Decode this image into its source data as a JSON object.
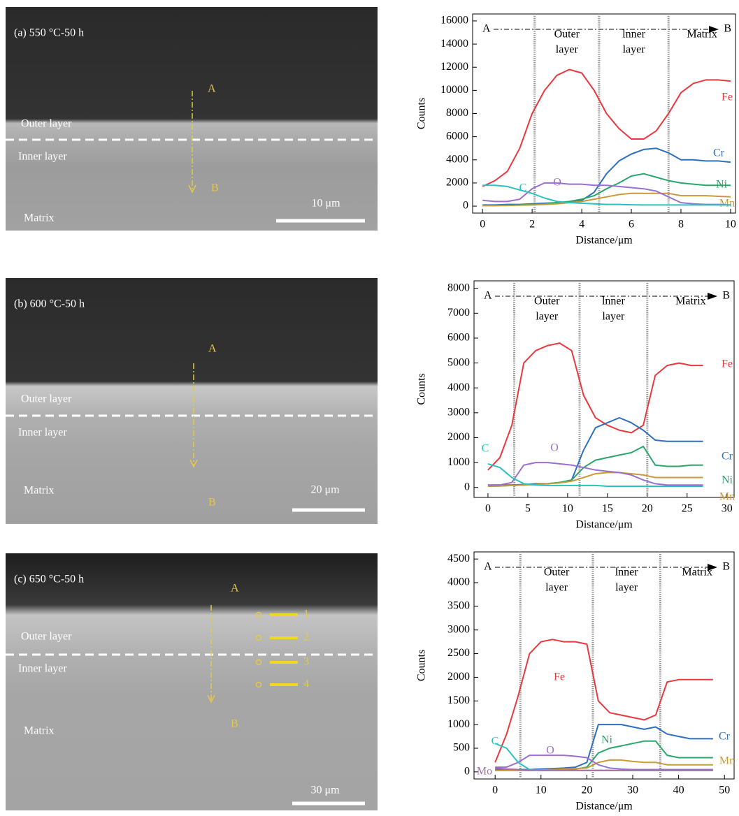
{
  "panels": [
    {
      "label": "(a) 550 °C-50 h",
      "point_a": "A",
      "point_b": "B",
      "outer": "Outer layer",
      "inner": "Inner layer",
      "matrix": "Matrix",
      "scale_bar": "10 μm"
    },
    {
      "label": "(b) 600 °C-50 h",
      "point_a": "A",
      "point_b": "B",
      "outer": "Outer layer",
      "inner": "Inner layer",
      "matrix": "Matrix",
      "scale_bar": "20 μm"
    },
    {
      "label": "(c) 650 °C-50 h",
      "point_a": "A",
      "point_b": "B",
      "outer": "Outer layer",
      "inner": "Inner layer",
      "matrix": "Matrix",
      "scale_bar": "30 μm",
      "spots": [
        "1",
        "2",
        "3",
        "4"
      ]
    }
  ],
  "chart_data": [
    {
      "type": "line",
      "y_label": "Counts",
      "x_label": "Distance/μm",
      "start": "A",
      "end": "B",
      "regions": [
        [
          "Outer",
          "layer"
        ],
        [
          "lnner",
          "layer"
        ],
        [
          "Matrix"
        ]
      ],
      "boundaries": [
        2.1,
        4.7,
        7.5
      ],
      "xlim": [
        -0.4,
        10.2
      ],
      "ylim": [
        -600,
        16600
      ],
      "xticks": [
        0,
        2,
        4,
        6,
        8,
        10
      ],
      "yticks": [
        0,
        2000,
        4000,
        6000,
        8000,
        10000,
        12000,
        14000,
        16000
      ],
      "x": [
        0,
        0.5,
        1,
        1.5,
        2,
        2.5,
        3,
        3.5,
        4,
        4.5,
        5,
        5.5,
        6,
        6.5,
        7,
        7.5,
        8,
        8.5,
        9,
        9.5,
        10
      ],
      "series": [
        {
          "name": "Fe",
          "color": "#e8393f",
          "values": [
            1700,
            2200,
            3000,
            5000,
            8000,
            10000,
            11300,
            11800,
            11500,
            10000,
            8000,
            6700,
            5800,
            5800,
            6500,
            8000,
            9800,
            10600,
            10900,
            10900,
            10800
          ]
        },
        {
          "name": "Cr",
          "color": "#2f6fbf",
          "values": [
            100,
            100,
            150,
            150,
            200,
            250,
            300,
            350,
            500,
            1200,
            2800,
            3900,
            4500,
            4900,
            5000,
            4600,
            4000,
            4000,
            3900,
            3900,
            3800
          ]
        },
        {
          "name": "Ni",
          "color": "#2aa66a",
          "values": [
            50,
            50,
            80,
            100,
            150,
            200,
            300,
            400,
            600,
            900,
            1500,
            2000,
            2600,
            2800,
            2500,
            2200,
            2000,
            1900,
            1800,
            1800,
            1800
          ]
        },
        {
          "name": "Mn",
          "color": "#c99a3a",
          "values": [
            50,
            50,
            60,
            80,
            100,
            150,
            200,
            300,
            400,
            600,
            800,
            1000,
            1100,
            1100,
            1100,
            1100,
            900,
            900,
            900,
            850,
            800
          ]
        },
        {
          "name": "O",
          "color": "#9b6fcf",
          "values": [
            500,
            400,
            400,
            600,
            1500,
            2000,
            2000,
            1900,
            1900,
            1800,
            1800,
            1700,
            1600,
            1500,
            1300,
            800,
            300,
            200,
            150,
            150,
            100
          ]
        },
        {
          "name": "C",
          "color": "#2cc0c0",
          "values": [
            1800,
            1800,
            1700,
            1400,
            1100,
            700,
            400,
            300,
            250,
            200,
            150,
            150,
            120,
            100,
            100,
            100,
            100,
            100,
            100,
            100,
            100
          ]
        }
      ]
    },
    {
      "type": "line",
      "y_label": "Counts",
      "x_label": "Distance/μm",
      "start": "A",
      "end": "B",
      "regions": [
        [
          "Outer",
          "layer"
        ],
        [
          "lnner",
          "layer"
        ],
        [
          "Matrix"
        ]
      ],
      "boundaries": [
        3.3,
        11.5,
        20
      ],
      "xlim": [
        -1.75,
        30.9
      ],
      "ylim": [
        -400,
        8300
      ],
      "xticks": [
        0,
        5,
        10,
        15,
        20,
        25,
        30
      ],
      "yticks": [
        0,
        1000,
        2000,
        3000,
        4000,
        5000,
        6000,
        7000,
        8000
      ],
      "x": [
        0,
        1.5,
        3,
        4.5,
        6,
        7.5,
        9,
        10.5,
        12,
        13.5,
        15,
        16.5,
        18,
        19.5,
        21,
        22.5,
        24,
        25.5,
        27
      ],
      "series": [
        {
          "name": "Fe",
          "color": "#e8393f",
          "values": [
            700,
            1200,
            2500,
            5000,
            5500,
            5700,
            5800,
            5500,
            3700,
            2800,
            2500,
            2300,
            2200,
            2500,
            4500,
            4900,
            5000,
            4900,
            4900
          ]
        },
        {
          "name": "Cr",
          "color": "#2f6fbf",
          "values": [
            100,
            100,
            100,
            120,
            150,
            150,
            200,
            300,
            1500,
            2400,
            2600,
            2800,
            2600,
            2300,
            1900,
            1850,
            1850,
            1850,
            1850
          ]
        },
        {
          "name": "Ni",
          "color": "#2aa66a",
          "values": [
            50,
            60,
            80,
            100,
            120,
            150,
            200,
            300,
            800,
            1100,
            1200,
            1300,
            1400,
            1650,
            900,
            850,
            850,
            900,
            900
          ]
        },
        {
          "name": "Mn",
          "color": "#c99a3a",
          "values": [
            50,
            60,
            80,
            100,
            120,
            150,
            180,
            250,
            400,
            550,
            600,
            600,
            550,
            500,
            400,
            400,
            400,
            400,
            400
          ]
        },
        {
          "name": "O",
          "color": "#9b6fcf",
          "values": [
            100,
            100,
            200,
            900,
            1000,
            1000,
            950,
            900,
            800,
            700,
            650,
            600,
            500,
            300,
            150,
            100,
            100,
            100,
            100
          ]
        },
        {
          "name": "C",
          "color": "#2cc0c0",
          "values": [
            950,
            800,
            400,
            150,
            100,
            80,
            80,
            80,
            80,
            80,
            50,
            50,
            50,
            50,
            50,
            50,
            50,
            50,
            50
          ]
        }
      ]
    },
    {
      "type": "line",
      "y_label": "Counts",
      "x_label": "Distance/μm",
      "start": "A",
      "end": "B",
      "regions": [
        [
          "Outer",
          "layer"
        ],
        [
          "lnner",
          "layer"
        ],
        [
          "Matrix"
        ]
      ],
      "boundaries": [
        5.5,
        21.3,
        36
      ],
      "xlim": [
        -4.6,
        52.1
      ],
      "ylim": [
        -150,
        4650
      ],
      "xticks": [
        0,
        10,
        20,
        30,
        40,
        50
      ],
      "yticks": [
        0,
        500,
        1000,
        1500,
        2000,
        2500,
        3000,
        3500,
        4000,
        4500
      ],
      "x": [
        0,
        2.5,
        5,
        7.5,
        10,
        12.5,
        15,
        17.5,
        20,
        22.5,
        25,
        27.5,
        30,
        32.5,
        35,
        37.5,
        40,
        42.5,
        45,
        47.5
      ],
      "series": [
        {
          "name": "Fe",
          "color": "#e8393f",
          "values": [
            200,
            800,
            1600,
            2500,
            2750,
            2800,
            2750,
            2750,
            2700,
            1500,
            1250,
            1200,
            1150,
            1100,
            1200,
            1900,
            1950,
            1950,
            1950,
            1950
          ]
        },
        {
          "name": "Cr",
          "color": "#2f6fbf",
          "values": [
            50,
            50,
            50,
            50,
            60,
            70,
            80,
            100,
            200,
            1000,
            1000,
            1000,
            950,
            900,
            950,
            800,
            750,
            700,
            700,
            700
          ]
        },
        {
          "name": "Ni",
          "color": "#2aa66a",
          "values": [
            30,
            30,
            30,
            30,
            40,
            40,
            50,
            60,
            100,
            400,
            500,
            550,
            600,
            650,
            650,
            350,
            300,
            300,
            300,
            300
          ]
        },
        {
          "name": "Mn",
          "color": "#c99a3a",
          "values": [
            30,
            30,
            30,
            40,
            40,
            50,
            60,
            70,
            80,
            200,
            250,
            250,
            220,
            200,
            200,
            150,
            150,
            150,
            150,
            150
          ]
        },
        {
          "name": "O",
          "color": "#9b6fcf",
          "values": [
            100,
            100,
            200,
            350,
            350,
            350,
            350,
            330,
            300,
            150,
            80,
            60,
            50,
            50,
            50,
            50,
            50,
            50,
            50,
            50
          ]
        },
        {
          "name": "C",
          "color": "#2cc0c0",
          "values": [
            600,
            500,
            200,
            50,
            30,
            30,
            30,
            30,
            30,
            30,
            30,
            30,
            30,
            30,
            30,
            30,
            30,
            30,
            30,
            30
          ]
        },
        {
          "name": "Mo",
          "color": "#a070a0",
          "values": [
            80,
            60,
            50,
            30,
            30,
            30,
            30,
            30,
            30,
            30,
            30,
            30,
            30,
            30,
            30,
            30,
            30,
            30,
            30,
            30
          ]
        }
      ]
    }
  ]
}
